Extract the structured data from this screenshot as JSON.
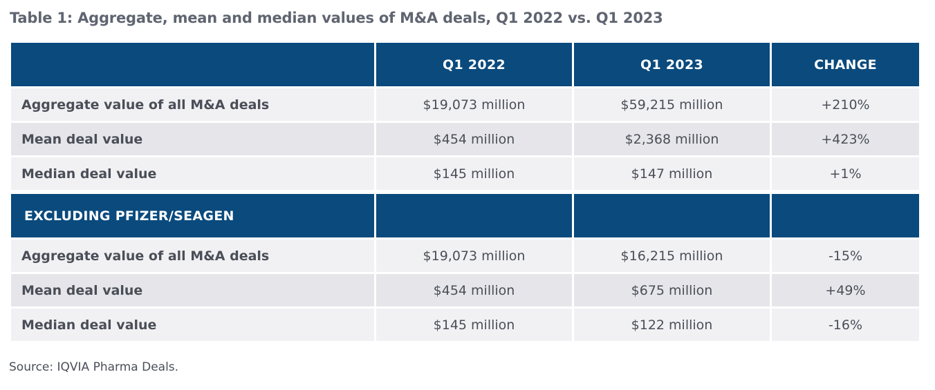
{
  "title": "Table 1: Aggregate, mean and median values of M&A deals, Q1 2022 vs. Q1 2023",
  "colors": {
    "header_bg": "#0a4a7d",
    "header_text": "#ffffff",
    "row_light": "#f1f1f4",
    "row_dark": "#e6e6ea",
    "text": "#4a4e57",
    "title": "#5f6570"
  },
  "chart_data": {
    "type": "table",
    "columns": [
      "",
      "Q1 2022",
      "Q1 2023",
      "CHANGE"
    ],
    "sections": [
      {
        "header": "",
        "rows": [
          {
            "label": "Aggregate value of all M&A deals",
            "q1_2022": "$19,073 million",
            "q1_2023": "$59,215 million",
            "change": "+210%"
          },
          {
            "label": "Mean deal value",
            "q1_2022": "$454 million",
            "q1_2023": "$2,368 million",
            "change": "+423%"
          },
          {
            "label": "Median deal value",
            "q1_2022": "$145 million",
            "q1_2023": "$147 million",
            "change": "+1%"
          }
        ]
      },
      {
        "header": "EXCLUDING PFIZER/SEAGEN",
        "rows": [
          {
            "label": "Aggregate value of all M&A deals",
            "q1_2022": "$19,073 million",
            "q1_2023": "$16,215 million",
            "change": "-15%"
          },
          {
            "label": "Mean deal value",
            "q1_2022": "$454 million",
            "q1_2023": "$675 million",
            "change": "+49%"
          },
          {
            "label": "Median deal value",
            "q1_2022": "$145 million",
            "q1_2023": "$122 million",
            "change": "-16%"
          }
        ]
      }
    ]
  },
  "source": "Source: IQVIA Pharma Deals."
}
